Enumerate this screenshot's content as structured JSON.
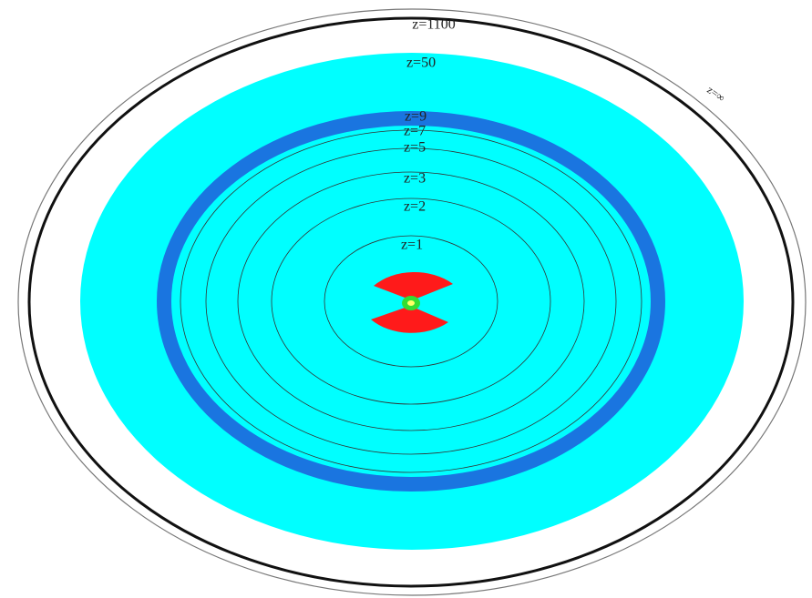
{
  "labels": [
    "z=1100",
    "z=50",
    "z=9",
    "z=7",
    "z=5",
    "z=3",
    "z=2",
    "z=1",
    "z=∞"
  ]
}
